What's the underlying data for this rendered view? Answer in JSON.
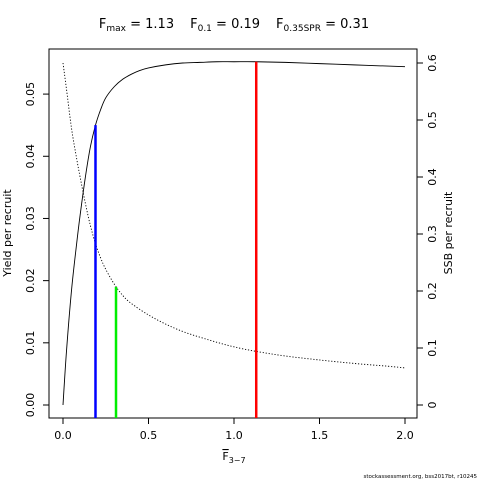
{
  "chart_data": {
    "type": "line",
    "title": {
      "fmax": {
        "label": "F",
        "sub": "max",
        "value": "1.13"
      },
      "f01": {
        "label": "F",
        "sub": "0.1",
        "value": "0.19"
      },
      "fspr": {
        "label": "F",
        "sub": "0.35SPR",
        "value": "0.31"
      }
    },
    "xlabel": {
      "main": "F",
      "sub": "3−7"
    },
    "ylabel_left": "Yield per recruit",
    "ylabel_right": "SSB per recruit",
    "xlim": [
      0,
      2.0
    ],
    "ylim_left": [
      0,
      0.055
    ],
    "ylim_right": [
      0,
      0.6
    ],
    "x_ticks": [
      0,
      0.5,
      1,
      1.5,
      2
    ],
    "x_tick_labels": [
      "0.0",
      "0.5",
      "1.0",
      "1.5",
      "2.0"
    ],
    "y_left_ticks": [
      0,
      0.01,
      0.02,
      0.03,
      0.04,
      0.05
    ],
    "y_left_tick_labels": [
      "0.00",
      "0.01",
      "0.02",
      "0.03",
      "0.04",
      "0.05"
    ],
    "y_right_ticks": [
      0,
      0.1,
      0.2,
      0.3,
      0.4,
      0.5,
      0.6
    ],
    "y_right_tick_labels": [
      "0",
      "0.1",
      "0.2",
      "0.3",
      "0.4",
      "0.5",
      "0.6"
    ],
    "series": [
      {
        "axis": "left",
        "style": "solid",
        "color": "#000000",
        "x": [
          0,
          0.02,
          0.05,
          0.08,
          0.1,
          0.13,
          0.16,
          0.19,
          0.22,
          0.25,
          0.3,
          0.35,
          0.4,
          0.45,
          0.5,
          0.6,
          0.7,
          0.8,
          0.9,
          1.0,
          1.13,
          1.3,
          1.5,
          1.7,
          1.9,
          2.0
        ],
        "y": [
          0,
          0.0085,
          0.0185,
          0.026,
          0.0305,
          0.0365,
          0.0415,
          0.045,
          0.0475,
          0.0494,
          0.0512,
          0.0524,
          0.0532,
          0.0538,
          0.0542,
          0.0547,
          0.055,
          0.0551,
          0.0552,
          0.0552,
          0.0552,
          0.0551,
          0.0549,
          0.0547,
          0.0545,
          0.0544
        ]
      },
      {
        "axis": "right",
        "style": "dotted",
        "color": "#000000",
        "x": [
          0,
          0.02,
          0.05,
          0.08,
          0.1,
          0.13,
          0.16,
          0.19,
          0.22,
          0.25,
          0.3,
          0.35,
          0.4,
          0.5,
          0.6,
          0.7,
          0.8,
          0.9,
          1.0,
          1.13,
          1.3,
          1.5,
          1.7,
          1.9,
          2.0
        ],
        "y": [
          0.6,
          0.555,
          0.485,
          0.432,
          0.4,
          0.355,
          0.315,
          0.283,
          0.258,
          0.238,
          0.212,
          0.192,
          0.178,
          0.158,
          0.142,
          0.129,
          0.119,
          0.11,
          0.102,
          0.094,
          0.086,
          0.079,
          0.073,
          0.068,
          0.065
        ]
      }
    ],
    "reference_lines": [
      {
        "name": "Fmax",
        "x": 1.13,
        "y_top": 0.0552,
        "color": "#ff0000"
      },
      {
        "name": "F0.1",
        "x": 0.19,
        "y_top": 0.045,
        "color": "#0000ff"
      },
      {
        "name": "F0.35SPR",
        "x": 0.31,
        "y_top": 0.019,
        "color": "#00ee00"
      }
    ],
    "grid": false,
    "legend": "none"
  },
  "source_note": "stockassessment.org, bss2017bt, r10245"
}
